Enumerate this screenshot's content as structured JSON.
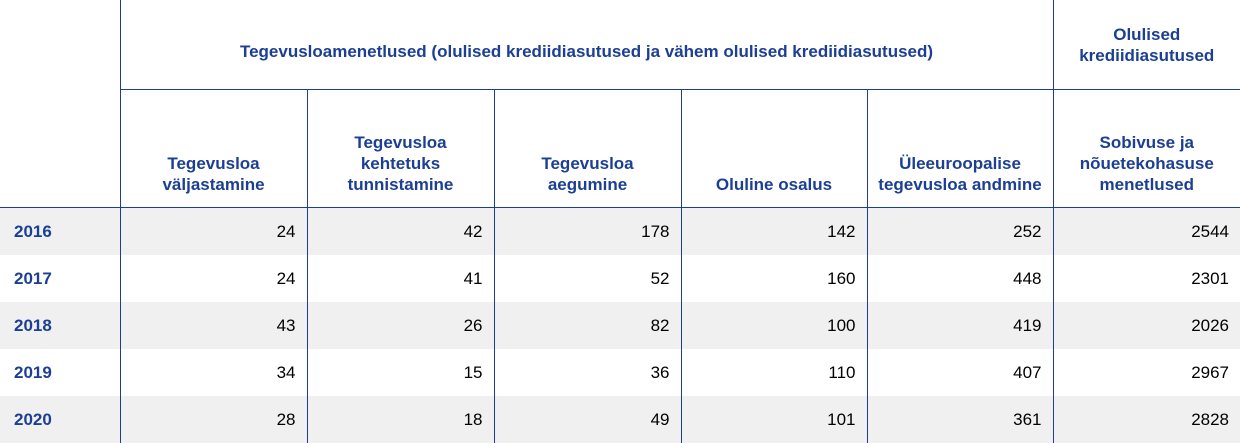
{
  "header": {
    "group_label": "Tegevusloamenetlused (olulised krediidiasutused ja vähem olulised krediidiasutused)",
    "right_group_label": "Olulised krediidiasutused",
    "columns": [
      "Tegevusloa väljastamine",
      "Tegevusloa kehtetuks tunnistamine",
      "Tegevusloa aegumine",
      "Oluline osalus",
      "Üleeuroopalise tegevusloa andmine",
      "Sobivuse ja nõuetekohasuse menetlused"
    ]
  },
  "rows": [
    {
      "year": "2016",
      "values": [
        "24",
        "42",
        "178",
        "142",
        "252",
        "2544"
      ]
    },
    {
      "year": "2017",
      "values": [
        "24",
        "41",
        "52",
        "160",
        "448",
        "2301"
      ]
    },
    {
      "year": "2018",
      "values": [
        "43",
        "26",
        "82",
        "100",
        "419",
        "2026"
      ]
    },
    {
      "year": "2019",
      "values": [
        "34",
        "15",
        "36",
        "110",
        "407",
        "2967"
      ]
    },
    {
      "year": "2020",
      "values": [
        "28",
        "18",
        "49",
        "101",
        "361",
        "2828"
      ]
    }
  ]
}
